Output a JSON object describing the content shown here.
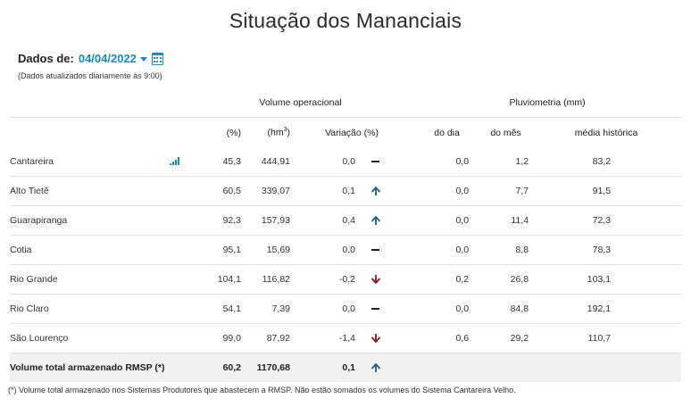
{
  "title": "Situação dos Mananciais",
  "date_selector": {
    "label": "Dados de:",
    "value": "04/04/2022",
    "icon": "calendar-icon"
  },
  "update_note": "(Dados atualizados diariamente às 9:00)",
  "table": {
    "group_headers": {
      "volume": "Volume operacional",
      "pluviometria": "Pluviometria (mm)"
    },
    "columns": {
      "percent": "(%)",
      "hm3_prefix": "(hm",
      "hm3_sup": "3",
      "hm3_suffix": ")",
      "variacao": "Variação (%)",
      "do_dia": "do dia",
      "do_mes": "do mês",
      "media": "média histórica"
    },
    "rows": [
      {
        "name": "Cantareira",
        "percent": "45,3",
        "volume": "444,91",
        "variacao": "0,0",
        "trend": "flat",
        "do_dia": "0,0",
        "do_mes": "1,2",
        "media": "83,2",
        "chart_icon": "bar-chart-icon"
      },
      {
        "name": "Alto Tietê",
        "percent": "60,5",
        "volume": "339,07",
        "variacao": "0,1",
        "trend": "up",
        "do_dia": "0,0",
        "do_mes": "7,7",
        "media": "91,5"
      },
      {
        "name": "Guarapiranga",
        "percent": "92,3",
        "volume": "157,93",
        "variacao": "0,4",
        "trend": "up",
        "do_dia": "0,0",
        "do_mes": "11,4",
        "media": "72,3"
      },
      {
        "name": "Cotia",
        "percent": "95,1",
        "volume": "15,69",
        "variacao": "0,0",
        "trend": "flat",
        "do_dia": "0,0",
        "do_mes": "8,8",
        "media": "78,3"
      },
      {
        "name": "Rio Grande",
        "percent": "104,1",
        "volume": "116,82",
        "variacao": "-0,2",
        "trend": "down",
        "do_dia": "0,2",
        "do_mes": "26,8",
        "media": "103,1"
      },
      {
        "name": "Rio Claro",
        "percent": "54,1",
        "volume": "7,39",
        "variacao": "0,0",
        "trend": "flat",
        "do_dia": "0,0",
        "do_mes": "84,8",
        "media": "192,1"
      },
      {
        "name": "São Lourenço",
        "percent": "99,0",
        "volume": "87,92",
        "variacao": "-1,4",
        "trend": "down",
        "do_dia": "0,6",
        "do_mes": "29,2",
        "media": "110,7"
      }
    ],
    "total": {
      "label": "Volume total armazenado RMSP (*)",
      "percent": "60,2",
      "volume": "1170,68",
      "variacao": "0,1",
      "trend": "up"
    }
  },
  "colors": {
    "accent": "#1f8ac0",
    "trend_up": "#1f5f8b",
    "trend_down": "#8b1a1a",
    "trend_flat": "#222222"
  },
  "footnote": "(*) Volume total armazenado nos Sistemas Produtores que abastecem a RMSP. Não estão somados os volumes do Sistema Cantareira Velho."
}
